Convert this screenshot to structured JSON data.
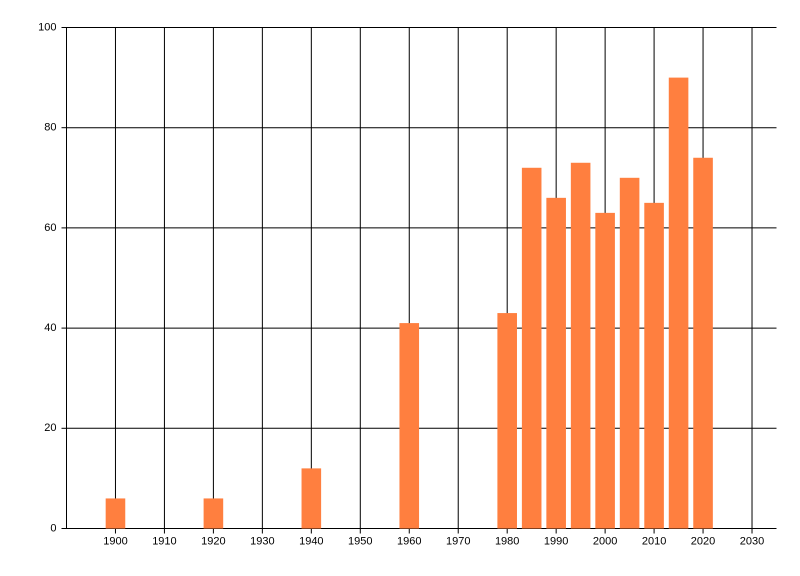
{
  "chart_data": {
    "type": "bar",
    "x": [
      1900,
      1920,
      1940,
      1960,
      1980,
      1985,
      1990,
      1995,
      2000,
      2005,
      2010,
      2015,
      2020
    ],
    "values": [
      6,
      6,
      12,
      41,
      43,
      72,
      66,
      73,
      63,
      70,
      65,
      90,
      74
    ],
    "color": "#ff7f3f",
    "xlim": [
      1890,
      2035
    ],
    "xticks": [
      1900,
      1910,
      1920,
      1930,
      1940,
      1950,
      1960,
      1970,
      1980,
      1990,
      2000,
      2010,
      2020,
      2030
    ],
    "ylim": [
      0,
      100
    ],
    "yticks": [
      0,
      20,
      40,
      60,
      80,
      100
    ],
    "grid": true
  }
}
